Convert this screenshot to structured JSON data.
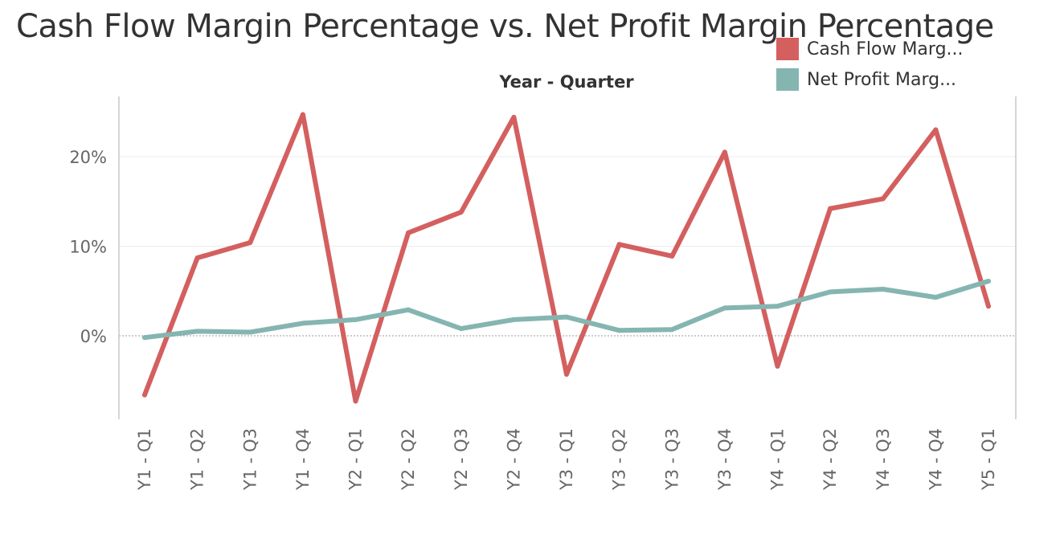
{
  "chart_data": {
    "type": "line",
    "title": "Cash Flow Margin Percentage vs. Net Profit Margin Percentage",
    "xlabel": "Year - Quarter",
    "ylabel": "",
    "categories": [
      "Y1 - Q1",
      "Y1 - Q2",
      "Y1 - Q3",
      "Y1 - Q4",
      "Y2 - Q1",
      "Y2 - Q2",
      "Y2 - Q3",
      "Y2 - Q4",
      "Y3 - Q1",
      "Y3 - Q2",
      "Y3 - Q3",
      "Y3 - Q4",
      "Y4 - Q1",
      "Y4 - Q2",
      "Y4 - Q3",
      "Y4 - Q4",
      "Y5 - Q1"
    ],
    "yticks": [
      0,
      10,
      20
    ],
    "ytick_labels": [
      "0%",
      "10%",
      "20%"
    ],
    "ylim": [
      -9.3,
      26.8
    ],
    "grid": true,
    "legend_position": "top-right",
    "series": [
      {
        "name": "Cash Flow Marg...",
        "color": "#d45f5f",
        "values": [
          -6.6,
          8.7,
          10.4,
          24.7,
          -7.3,
          11.5,
          13.8,
          24.4,
          -4.3,
          10.2,
          8.9,
          20.5,
          -3.4,
          14.2,
          15.3,
          23.0,
          3.3
        ]
      },
      {
        "name": "Net Profit Marg...",
        "color": "#85b5b1",
        "values": [
          -0.2,
          0.5,
          0.4,
          1.4,
          1.8,
          2.9,
          0.8,
          1.8,
          2.1,
          0.6,
          0.7,
          3.1,
          3.3,
          4.9,
          5.2,
          4.3,
          6.1
        ]
      }
    ]
  }
}
